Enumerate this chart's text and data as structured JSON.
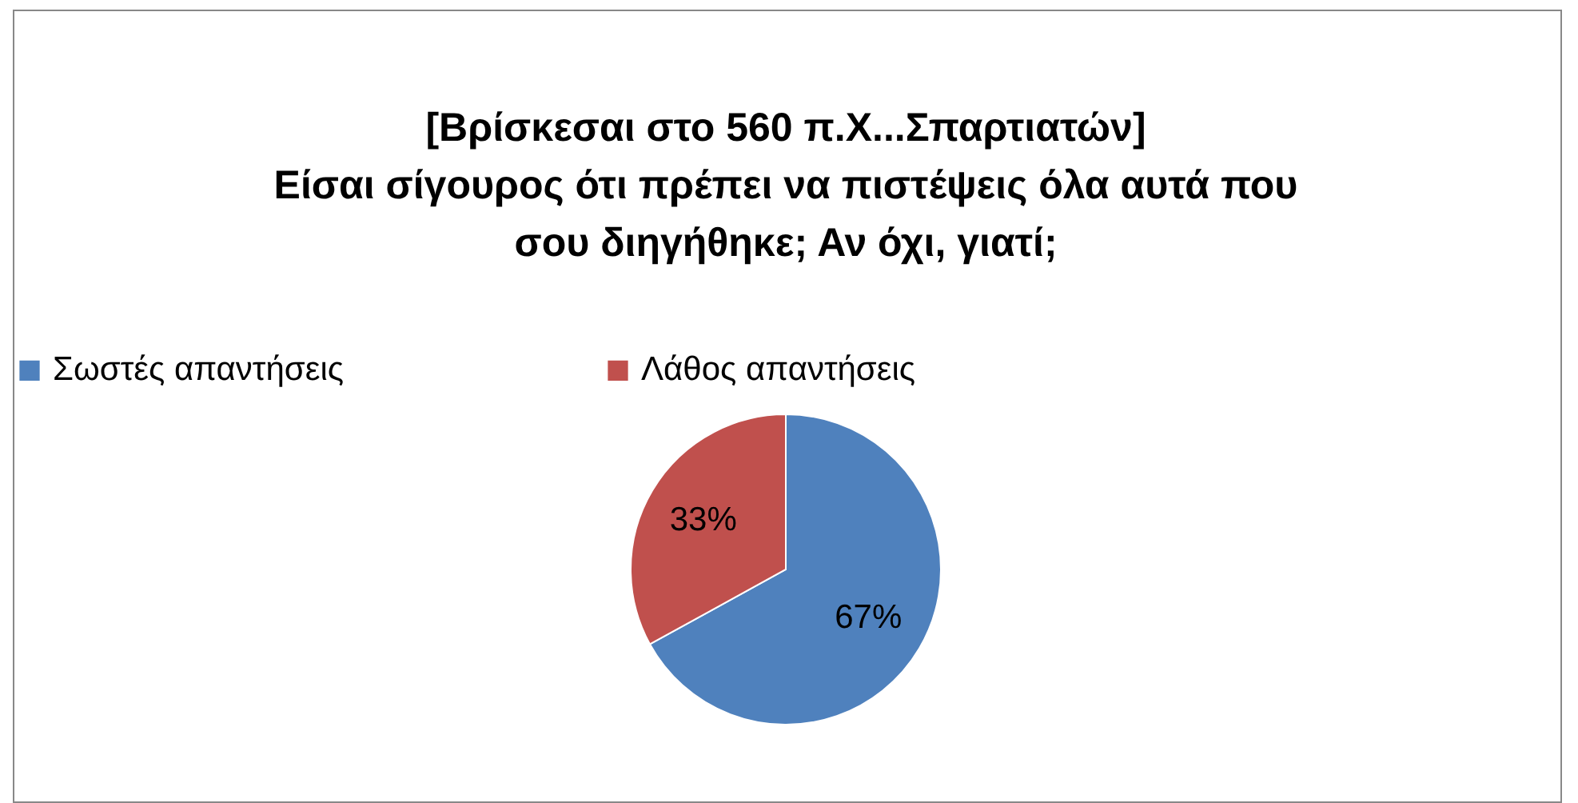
{
  "chart_data": {
    "type": "pie",
    "title": "[Βρίσκεσαι στο 560 π.Χ...Σπαρτιατών]\nΕίσαι σίγουρος ότι πρέπει να πιστέψεις όλα αυτά που\nσου διηγήθηκε; Αν όχι, γιατί;",
    "categories": [
      "Σωστές απαντήσεις",
      "Λάθος απαντήσεις"
    ],
    "values": [
      67,
      33
    ],
    "colors": [
      "#4f81bd",
      "#c0504d"
    ],
    "value_labels": [
      "67%",
      "33%"
    ],
    "legend": "top"
  }
}
